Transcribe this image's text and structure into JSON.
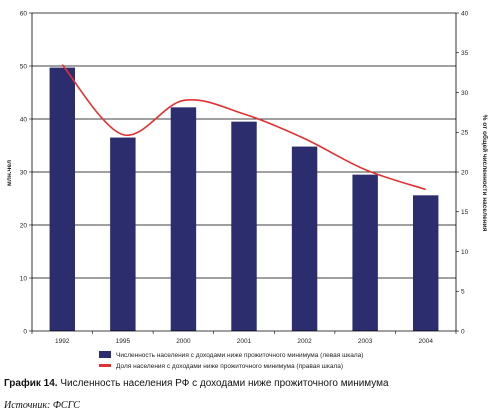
{
  "chart_data": {
    "type": "bar",
    "categories": [
      "1992",
      "1995",
      "2000",
      "2001",
      "2002",
      "2003",
      "2004"
    ],
    "series": [
      {
        "name": "Численность населения с доходами ниже прожиточного минимума (левая шкала)",
        "kind": "bar",
        "axis": "left",
        "color": "#2b2d6e",
        "values": [
          49.7,
          36.5,
          42.2,
          39.5,
          34.8,
          29.5,
          25.6
        ]
      },
      {
        "name": "Доля населения с доходами ниже прожиточного минимума  (правая шкала)",
        "kind": "line",
        "axis": "right",
        "color": "#e23232",
        "values": [
          33.5,
          24.7,
          29.0,
          27.3,
          24.2,
          20.3,
          17.8
        ]
      }
    ],
    "ylabel": "млн.чел",
    "ylabel_right": "% от общей численности населения",
    "ylim": [
      0,
      60
    ],
    "ylim_right": [
      0,
      40
    ],
    "yticks": [
      0,
      10,
      20,
      30,
      40,
      50,
      60
    ],
    "yticks_right": [
      0,
      5,
      10,
      15,
      20,
      25,
      30,
      35,
      40
    ],
    "grid": true,
    "legend_position": "bottom"
  },
  "caption": {
    "label": "График 14.",
    "text": "Численность населения РФ с доходами ниже прожиточного минимума"
  },
  "source": "Источник: ФСГС"
}
